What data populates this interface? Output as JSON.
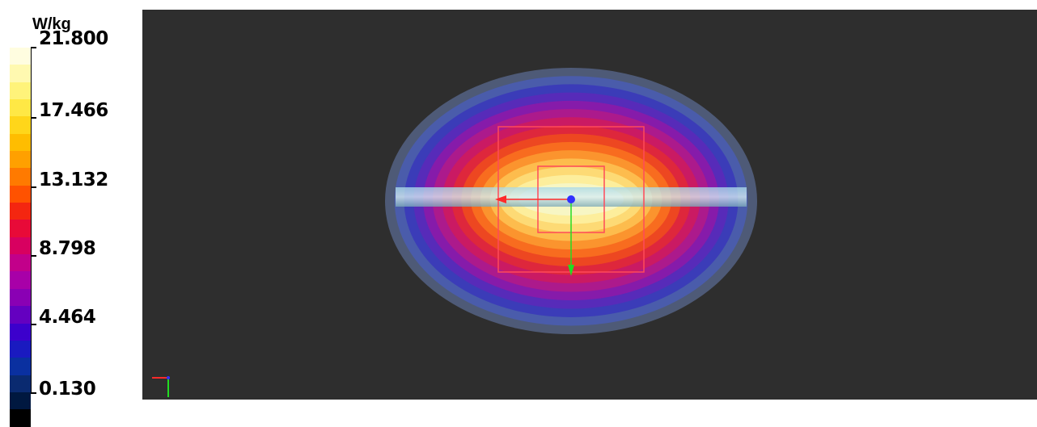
{
  "legend": {
    "unit": "W/kg",
    "ticks": [
      "21.800",
      "17.466",
      "13.132",
      "8.798",
      "4.464",
      "0.130"
    ],
    "colors": [
      "#fffde0",
      "#fff9b0",
      "#fff37a",
      "#ffe845",
      "#ffd61a",
      "#ffbd00",
      "#ffa000",
      "#ff7a00",
      "#ff5200",
      "#f42610",
      "#e80a38",
      "#d80060",
      "#c2008a",
      "#a800a8",
      "#8a00b4",
      "#6400c0",
      "#3c00cc",
      "#1a1ac0",
      "#0a30a0",
      "#0a2a70",
      "#001840",
      "#000000"
    ]
  },
  "viewport": {
    "background": "#2e2e2e",
    "contour_colors": [
      "#5a6a90",
      "#4a5cb0",
      "#3a3ab8",
      "#5a2ab8",
      "#8a1aa8",
      "#b01a8a",
      "#cc1a60",
      "#e02838",
      "#ee4a20",
      "#f87020",
      "#fb9830",
      "#fdbf50",
      "#fddc78",
      "#fdf0a0",
      "#f6f6c8"
    ],
    "body_color": "#ffffff",
    "probe_color": "#ff4a5a",
    "axis_x_color": "#ff2a2a",
    "axis_y_color": "#22dd22",
    "origin_color": "#3030ff"
  }
}
